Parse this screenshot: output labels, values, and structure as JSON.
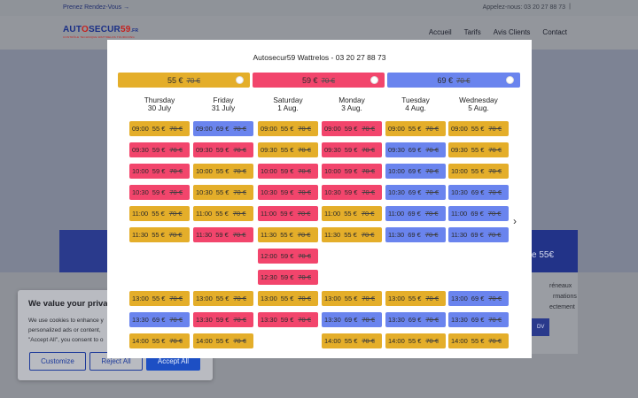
{
  "topbar": {
    "rdv_link": "Prenez Rendez-Vous →",
    "phone": "Appelez-nous: 03 20 27 88 73",
    "separator": "|"
  },
  "logo": {
    "brand_main": "AUT",
    "brand_o": "O",
    "brand_rest": "SECUR",
    "brand_num": "59",
    "brand_fr": ".FR",
    "tagline": "CONTRÔLE TECHNIQUE WATTRELOS TOURCOING"
  },
  "nav": {
    "items": [
      "Accueil",
      "Tarifs",
      "Avis Clients",
      "Contact"
    ]
  },
  "background": {
    "card_right_text": "e 55€",
    "card_body_lines": [
      "réneaux",
      "rmations",
      "ectement"
    ],
    "card_body_button": "DV"
  },
  "cookie": {
    "title": "We value your privacy",
    "text": "We use cookies to enhance y personalized ads or content, \"Accept All\", you consent to o",
    "customize": "Customize",
    "reject": "Reject All",
    "accept": "Accept All"
  },
  "modal": {
    "title": "Autosecur59 Wattrelos - 03 20 27 88 73",
    "tiers": [
      {
        "price": "55 €",
        "old": "70 €",
        "color": "#e4ae2a"
      },
      {
        "price": "59 €",
        "old": "70 €",
        "color": "#f2456c"
      },
      {
        "price": "69 €",
        "old": "70 €",
        "color": "#6a84ee"
      }
    ],
    "days": [
      {
        "weekday": "Thursday",
        "date": "30 July"
      },
      {
        "weekday": "Friday",
        "date": "31 July"
      },
      {
        "weekday": "Saturday",
        "date": "1 Aug."
      },
      {
        "weekday": "Monday",
        "date": "3 Aug."
      },
      {
        "weekday": "Tuesday",
        "date": "4 Aug."
      },
      {
        "weekday": "Wednesday",
        "date": "5 Aug."
      }
    ],
    "old_price": "70 €",
    "times": [
      "09:00",
      "09:30",
      "10:00",
      "10:30",
      "11:00",
      "11:30",
      "12:00",
      "12:30",
      "13:00",
      "13:30",
      "14:00"
    ],
    "slots": [
      [
        "55 €",
        "69 €",
        "55 €",
        "59 €",
        "55 €",
        "55 €"
      ],
      [
        "59 €",
        "59 €",
        "55 €",
        "59 €",
        "69 €",
        "55 €"
      ],
      [
        "59 €",
        "55 €",
        "59 €",
        "59 €",
        "69 €",
        "55 €"
      ],
      [
        "59 €",
        "55 €",
        "59 €",
        "59 €",
        "69 €",
        "69 €"
      ],
      [
        "55 €",
        "55 €",
        "59 €",
        "55 €",
        "69 €",
        "69 €"
      ],
      [
        "55 €",
        "59 €",
        "55 €",
        "55 €",
        "69 €",
        "69 €"
      ],
      [
        null,
        null,
        "59 €",
        null,
        null,
        null
      ],
      [
        null,
        null,
        "59 €",
        null,
        null,
        null
      ],
      [
        "55 €",
        "55 €",
        "55 €",
        "55 €",
        "55 €",
        "69 €"
      ],
      [
        "69 €",
        "59 €",
        "59 €",
        "69 €",
        "69 €",
        "69 €"
      ],
      [
        "55 €",
        "55 €",
        null,
        "55 €",
        "55 €",
        "55 €"
      ]
    ],
    "next_icon": "chevron-right-icon"
  }
}
